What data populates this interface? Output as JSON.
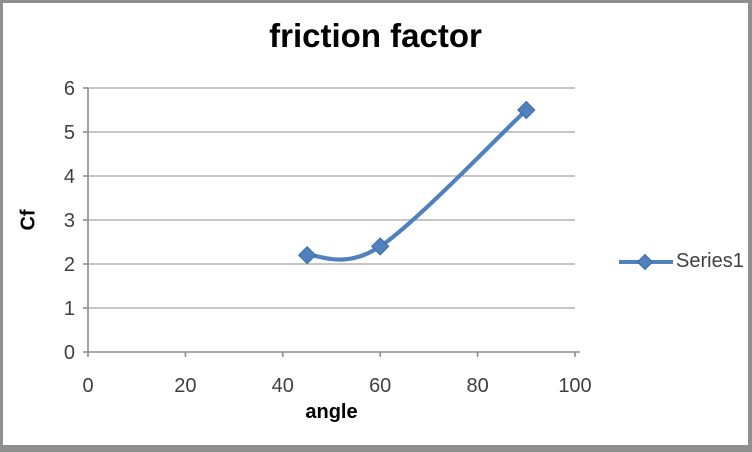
{
  "chart_data": {
    "type": "line",
    "title": "friction factor",
    "xlabel": "angle",
    "ylabel": "Cf",
    "xlim": [
      0,
      100
    ],
    "ylim": [
      0,
      6
    ],
    "xticks": [
      "0",
      "20",
      "40",
      "60",
      "80",
      "100"
    ],
    "yticks": [
      "0",
      "1",
      "2",
      "3",
      "4",
      "5",
      "6"
    ],
    "grid": "horizontal-major-only",
    "legend_position": "right",
    "line_style": "smooth",
    "marker_style": "diamond",
    "series": [
      {
        "name": "Series1",
        "color": "#4f81bd",
        "marker_edge_color": "#3c6ca8",
        "x": [
          45,
          60,
          90
        ],
        "y": [
          2.2,
          2.4,
          5.5
        ]
      }
    ],
    "colors": {
      "gridline": "#b2b2b2",
      "axis_line": "#8e8e8e",
      "tick_text": "#3f3f3f",
      "title_text": "#000000",
      "frame_border": "#8f8f8f",
      "plot_background": "#ffffff"
    }
  }
}
